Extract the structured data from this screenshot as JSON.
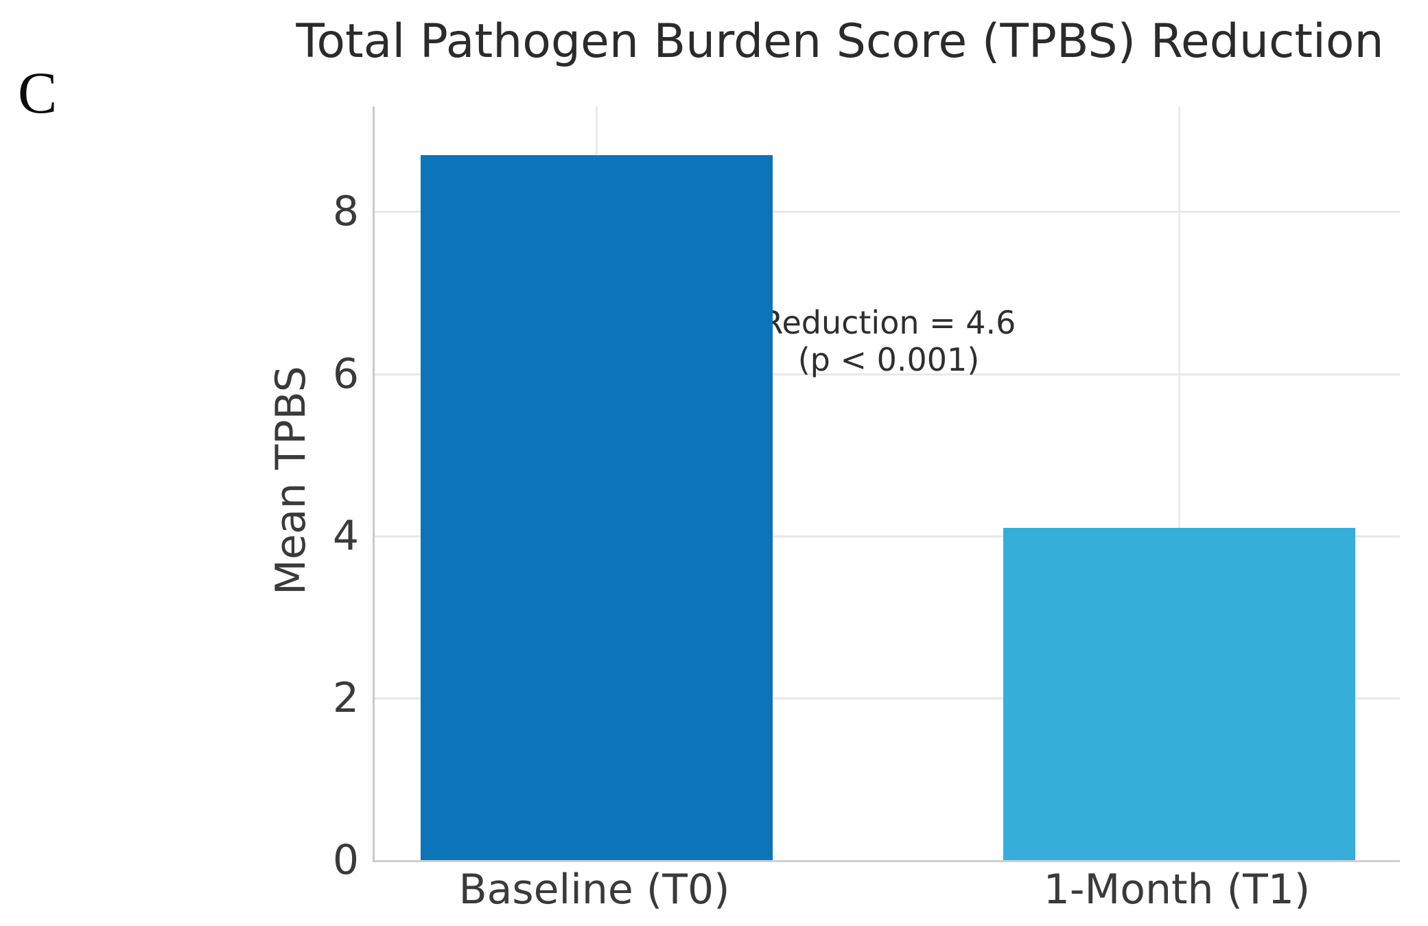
{
  "figure": {
    "panel_label": "C",
    "background": "#ffffff"
  },
  "chart_data": {
    "type": "bar",
    "title": "Total Pathogen Burden Score (TPBS) Reduction",
    "categories": [
      "Baseline (T0)",
      "1-Month (T1)"
    ],
    "values": [
      8.7,
      4.1
    ],
    "xlabel": "",
    "ylabel": "Mean TPBS",
    "ylim": [
      0,
      9.3
    ],
    "yticks": [
      0,
      2,
      4,
      6,
      8
    ],
    "bar_colors": [
      "#0c74b8",
      "#35aeda"
    ],
    "grid": true,
    "legend_position": "none",
    "annotation": {
      "line1": "Reduction = 4.6",
      "line2": "(p < 0.001)"
    },
    "colors": {
      "grid": "#e8e8e8",
      "spine": "#c9c9c9",
      "title_text": "#2b2b2b",
      "tick_text": "#3a3a3a",
      "annotation_text": "#2e2e2e"
    }
  }
}
